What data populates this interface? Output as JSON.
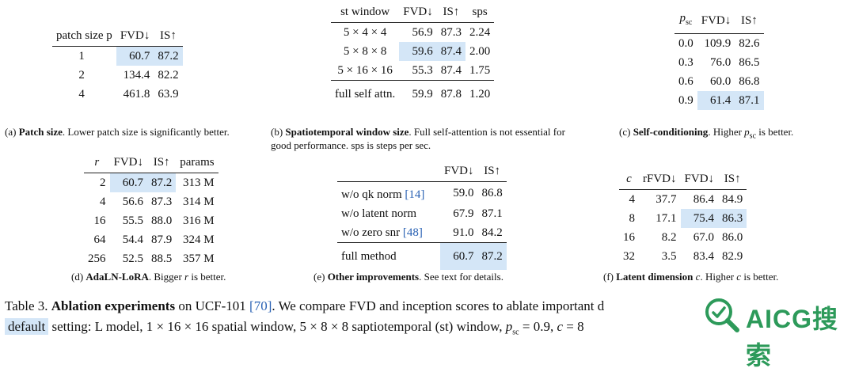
{
  "table_a": {
    "headers": [
      "patch size p",
      "FVD↓",
      "IS↑"
    ],
    "rows": [
      [
        "1",
        "60.7",
        "87.2"
      ],
      [
        "2",
        "134.4",
        "82.2"
      ],
      [
        "4",
        "461.8",
        "63.9"
      ]
    ],
    "caption_label": "(a)",
    "caption_bold": "Patch size",
    "caption_text": ". Lower patch size is significantly better."
  },
  "table_b": {
    "headers": [
      "st window",
      "FVD↓",
      "IS↑",
      "sps"
    ],
    "rows": [
      [
        "5 × 4 × 4",
        "56.9",
        "87.3",
        "2.24"
      ],
      [
        "5 × 8 × 8",
        "59.6",
        "87.4",
        "2.00"
      ],
      [
        "5 × 16 × 16",
        "55.3",
        "87.4",
        "1.75"
      ]
    ],
    "final_row": [
      "full self attn.",
      "59.9",
      "87.8",
      "1.20"
    ],
    "caption_label": "(b)",
    "caption_bold": "Spatiotemporal window size",
    "caption_text": ". Full self-attention is not essential for good performance. sps is steps per sec."
  },
  "table_c": {
    "headers": [
      "p",
      "FVD↓",
      "IS↑"
    ],
    "header_sub": "sc",
    "rows": [
      [
        "0.0",
        "109.9",
        "82.6"
      ],
      [
        "0.3",
        "76.0",
        "86.5"
      ],
      [
        "0.6",
        "60.0",
        "86.8"
      ],
      [
        "0.9",
        "61.4",
        "87.1"
      ]
    ],
    "caption_label": "(c)",
    "caption_bold": "Self-conditioning",
    "caption_text_1": ". Higher ",
    "caption_var": "p",
    "caption_var_sub": "sc",
    "caption_text_2": " is better."
  },
  "table_d": {
    "headers": [
      "r",
      "FVD↓",
      "IS↑",
      "params"
    ],
    "rows": [
      [
        "2",
        "60.7",
        "87.2",
        "313 M"
      ],
      [
        "4",
        "56.6",
        "87.3",
        "314 M"
      ],
      [
        "16",
        "55.5",
        "88.0",
        "316 M"
      ],
      [
        "64",
        "54.4",
        "87.9",
        "324 M"
      ],
      [
        "256",
        "52.5",
        "88.5",
        "357 M"
      ]
    ],
    "caption_label": "(d)",
    "caption_bold": "AdaLN-LoRA",
    "caption_text_1": ". Bigger ",
    "caption_var": "r",
    "caption_text_2": " is better."
  },
  "table_e": {
    "headers": [
      "",
      "FVD↓",
      "IS↑"
    ],
    "rows": [
      {
        "label": "w/o qk norm ",
        "ref": "[14]",
        "fvd": "59.0",
        "is": "86.8"
      },
      {
        "label": "w/o latent norm",
        "ref": "",
        "fvd": "67.9",
        "is": "87.1"
      },
      {
        "label": "w/o zero snr ",
        "ref": "[48]",
        "fvd": "91.0",
        "is": "84.2"
      }
    ],
    "final_row": [
      "full method",
      "60.7",
      "87.2"
    ],
    "caption_label": "(e)",
    "caption_bold": "Other improvements",
    "caption_text": ". See text for details."
  },
  "table_f": {
    "headers": [
      "c",
      "rFVD↓",
      "FVD↓",
      "IS↑"
    ],
    "rows": [
      [
        "4",
        "37.7",
        "86.4",
        "84.9"
      ],
      [
        "8",
        "17.1",
        "75.4",
        "86.3"
      ],
      [
        "16",
        "8.2",
        "67.0",
        "86.0"
      ],
      [
        "32",
        "3.5",
        "83.4",
        "82.9"
      ]
    ],
    "caption_label": "(f)",
    "caption_bold": "Latent dimension",
    "caption_text_1": " ",
    "caption_var": "c",
    "caption_text_2": ". Higher ",
    "caption_var_2": "c",
    "caption_text_3": " is better."
  },
  "main_caption": {
    "line1_prefix": "Table 3. ",
    "line1_bold": "Ablation experiments",
    "line1_mid": " on UCF-101 ",
    "line1_ref": "[70]",
    "line1_rest": ". We compare FVD and inception scores to ablate important d",
    "line2_badge": "default",
    "line2_rest_a": " setting: L model, 1 × 16 × 16 spatial window, 5 × 8 × 8 saptiotemporal (st) window, ",
    "line2_var": "p",
    "line2_var_sub": "sc",
    "line2_rest_b": " = 0.9, ",
    "line2_var_2": "c",
    "line2_rest_c": " = 8"
  },
  "watermark": {
    "text": "AICG搜索",
    "color": "#2d9a5a",
    "icon": "magnifier-logo-icon"
  }
}
